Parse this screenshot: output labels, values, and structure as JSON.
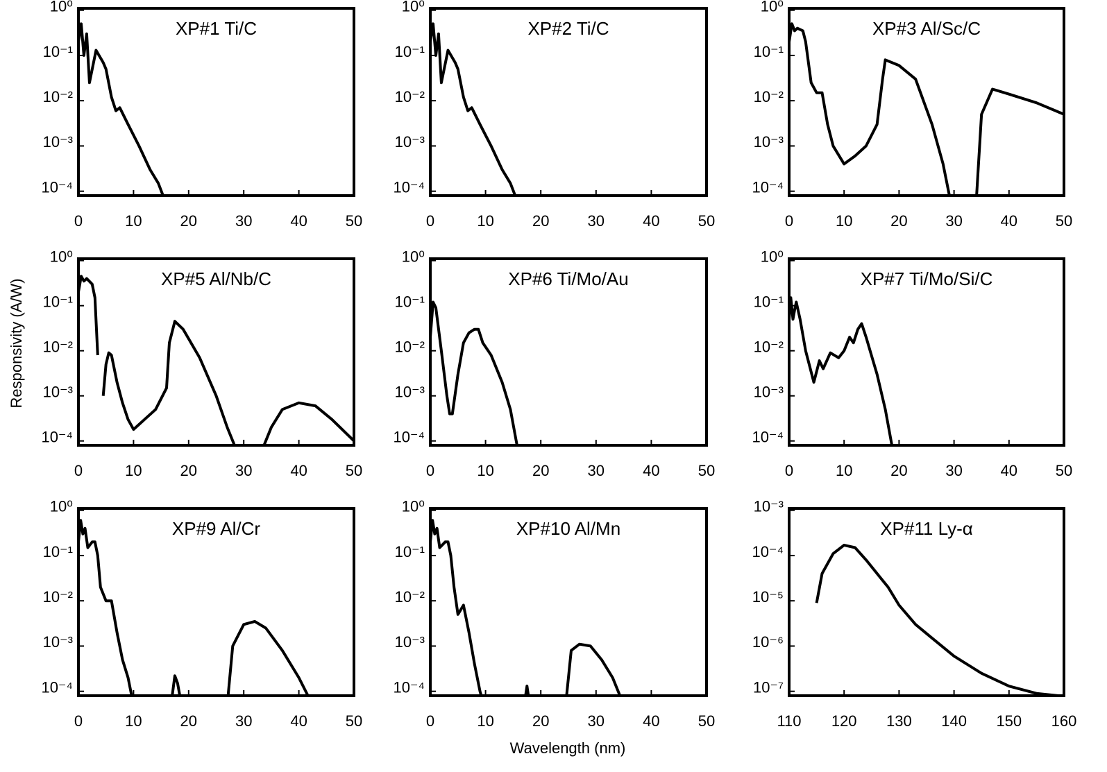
{
  "xlabel": "Wavelength (nm)",
  "ylabel": "Responsivity (A/W)",
  "chart_data": [
    {
      "type": "line",
      "title": "XP#1 Ti/C",
      "yscale": "log",
      "color": "#000000",
      "x": [
        0,
        0.5,
        1,
        1.5,
        2,
        3.2,
        4.5,
        5,
        6,
        6.8,
        7.5,
        9,
        11,
        13,
        14.5,
        16
      ],
      "values": [
        0.2,
        0.5,
        0.1,
        0.3,
        0.025,
        0.13,
        0.07,
        0.05,
        0.012,
        0.006,
        0.007,
        0.003,
        0.001,
        0.0003,
        0.00015,
        5e-05
      ],
      "xlim": [
        0,
        50
      ],
      "xticks": [
        0,
        10,
        20,
        30,
        40,
        50
      ],
      "ylim": [
        8e-05,
        1.1
      ],
      "yticks": [
        {
          "value": 1,
          "label": "10⁰"
        },
        {
          "value": 0.1,
          "label": "10⁻¹"
        },
        {
          "value": 0.01,
          "label": "10⁻²"
        },
        {
          "value": 0.001,
          "label": "10⁻³"
        },
        {
          "value": 0.0001,
          "label": "10⁻⁴"
        }
      ]
    },
    {
      "type": "line",
      "title": "XP#2 Ti/C",
      "yscale": "log",
      "color": "#000000",
      "x": [
        0,
        0.5,
        1,
        1.5,
        2,
        3.2,
        4.5,
        5,
        6,
        6.8,
        7.5,
        9,
        11,
        13,
        14.5,
        16
      ],
      "values": [
        0.2,
        0.5,
        0.1,
        0.3,
        0.025,
        0.13,
        0.07,
        0.05,
        0.012,
        0.006,
        0.007,
        0.003,
        0.001,
        0.0003,
        0.00015,
        5e-05
      ],
      "xlim": [
        0,
        50
      ],
      "xticks": [
        0,
        10,
        20,
        30,
        40,
        50
      ],
      "ylim": [
        8e-05,
        1.1
      ],
      "yticks": [
        {
          "value": 1,
          "label": "10⁰"
        },
        {
          "value": 0.1,
          "label": "10⁻¹"
        },
        {
          "value": 0.01,
          "label": "10⁻²"
        },
        {
          "value": 0.001,
          "label": "10⁻³"
        },
        {
          "value": 0.0001,
          "label": "10⁻⁴"
        }
      ]
    },
    {
      "type": "line",
      "title": "XP#3 Al/Sc/C",
      "yscale": "log",
      "color": "#000000",
      "x": [
        0,
        0.5,
        1,
        1.5,
        2.5,
        3,
        4,
        5,
        6,
        7,
        8,
        10,
        12,
        14,
        16,
        17,
        17.5,
        20,
        23,
        26,
        28,
        29.5,
        32,
        34,
        35,
        37,
        40,
        45,
        50
      ],
      "values": [
        0.2,
        0.5,
        0.35,
        0.4,
        0.35,
        0.2,
        0.025,
        0.015,
        0.015,
        0.003,
        0.001,
        0.0004,
        0.0006,
        0.001,
        0.003,
        0.03,
        0.08,
        0.06,
        0.03,
        0.003,
        0.0004,
        5e-05,
        null,
        5e-05,
        0.005,
        0.018,
        0.014,
        0.009,
        0.005
      ],
      "xlim": [
        0,
        50
      ],
      "xticks": [
        0,
        10,
        20,
        30,
        40,
        50
      ],
      "ylim": [
        8e-05,
        1.1
      ],
      "yticks": [
        {
          "value": 1,
          "label": "10⁰"
        },
        {
          "value": 0.1,
          "label": "10⁻¹"
        },
        {
          "value": 0.01,
          "label": "10⁻²"
        },
        {
          "value": 0.001,
          "label": "10⁻³"
        },
        {
          "value": 0.0001,
          "label": "10⁻⁴"
        }
      ]
    },
    {
      "type": "line",
      "title": "XP#5 Al/Nb/C",
      "yscale": "log",
      "color": "#000000",
      "x": [
        0,
        0.5,
        1,
        1.5,
        2.5,
        3,
        3.5,
        4,
        4.5,
        5,
        5.5,
        6,
        7,
        8,
        9,
        10,
        12,
        14,
        16,
        16.5,
        17.5,
        19,
        22,
        25,
        27,
        29,
        31,
        33,
        35,
        37,
        40,
        43,
        46,
        50
      ],
      "values": [
        0.2,
        0.45,
        0.35,
        0.4,
        0.3,
        0.15,
        0.008,
        null,
        0.001,
        0.005,
        0.009,
        0.008,
        0.002,
        0.0007,
        0.0003,
        0.00018,
        0.0003,
        0.0005,
        0.0015,
        0.015,
        0.045,
        0.03,
        0.007,
        0.001,
        0.0002,
        5e-05,
        null,
        5e-05,
        0.0002,
        0.0005,
        0.0007,
        0.0006,
        0.0003,
        0.0001
      ],
      "xlim": [
        0,
        50
      ],
      "xticks": [
        0,
        10,
        20,
        30,
        40,
        50
      ],
      "ylim": [
        8e-05,
        1.1
      ],
      "yticks": [
        {
          "value": 1,
          "label": "10⁰"
        },
        {
          "value": 0.1,
          "label": "10⁻¹"
        },
        {
          "value": 0.01,
          "label": "10⁻²"
        },
        {
          "value": 0.001,
          "label": "10⁻³"
        },
        {
          "value": 0.0001,
          "label": "10⁻⁴"
        }
      ]
    },
    {
      "type": "line",
      "title": "XP#6 Ti/Mo/Au",
      "yscale": "log",
      "color": "#000000",
      "x": [
        0,
        0.5,
        1,
        2,
        3,
        3.5,
        4,
        5,
        6,
        7,
        8,
        8.7,
        9.5,
        11,
        13,
        14.5,
        16
      ],
      "values": [
        0.02,
        0.12,
        0.09,
        0.01,
        0.001,
        0.0004,
        0.0004,
        0.003,
        0.015,
        0.025,
        0.03,
        0.03,
        0.015,
        0.008,
        0.002,
        0.0005,
        5e-05
      ],
      "xlim": [
        0,
        50
      ],
      "xticks": [
        0,
        10,
        20,
        30,
        40,
        50
      ],
      "ylim": [
        8e-05,
        1.1
      ],
      "yticks": [
        {
          "value": 1,
          "label": "10⁰"
        },
        {
          "value": 0.1,
          "label": "10⁻¹"
        },
        {
          "value": 0.01,
          "label": "10⁻²"
        },
        {
          "value": 0.001,
          "label": "10⁻³"
        },
        {
          "value": 0.0001,
          "label": "10⁻⁴"
        }
      ]
    },
    {
      "type": "line",
      "title": "XP#7 Ti/Mo/Si/C",
      "yscale": "log",
      "color": "#000000",
      "x": [
        0,
        0.3,
        0.7,
        1,
        1.3,
        2,
        3,
        4.5,
        5.5,
        6.2,
        7.5,
        9,
        10,
        11,
        11.7,
        12.5,
        13.2,
        14,
        16,
        17.5,
        19
      ],
      "values": [
        0.05,
        0.15,
        0.05,
        0.08,
        0.12,
        0.05,
        0.01,
        0.002,
        0.006,
        0.004,
        0.009,
        0.007,
        0.01,
        0.02,
        0.015,
        0.03,
        0.04,
        0.02,
        0.003,
        0.0005,
        5e-05
      ],
      "xlim": [
        0,
        50
      ],
      "xticks": [
        0,
        10,
        20,
        30,
        40,
        50
      ],
      "ylim": [
        8e-05,
        1.1
      ],
      "yticks": [
        {
          "value": 1,
          "label": "10⁰"
        },
        {
          "value": 0.1,
          "label": "10⁻¹"
        },
        {
          "value": 0.01,
          "label": "10⁻²"
        },
        {
          "value": 0.001,
          "label": "10⁻³"
        },
        {
          "value": 0.0001,
          "label": "10⁻⁴"
        }
      ]
    },
    {
      "type": "line",
      "title": "XP#9 Al/Cr",
      "yscale": "log",
      "color": "#000000",
      "x": [
        0,
        0.4,
        0.8,
        1.2,
        1.7,
        2.5,
        3,
        3.5,
        4,
        5,
        6,
        7,
        8,
        9,
        10,
        13,
        16.8,
        17.5,
        18,
        18.7,
        23,
        27,
        28,
        30,
        32,
        34,
        37,
        40,
        42.5
      ],
      "values": [
        0.2,
        0.6,
        0.3,
        0.4,
        0.15,
        0.2,
        0.2,
        0.1,
        0.02,
        0.01,
        0.01,
        0.002,
        0.0005,
        0.0002,
        5e-05,
        null,
        5e-05,
        0.00022,
        0.00015,
        5e-05,
        null,
        5e-05,
        0.001,
        0.003,
        0.0035,
        0.0025,
        0.0008,
        0.0002,
        5e-05
      ],
      "xlim": [
        0,
        50
      ],
      "xticks": [
        0,
        10,
        20,
        30,
        40,
        50
      ],
      "ylim": [
        8e-05,
        1.1
      ],
      "yticks": [
        {
          "value": 1,
          "label": "10⁰"
        },
        {
          "value": 0.1,
          "label": "10⁻¹"
        },
        {
          "value": 0.01,
          "label": "10⁻²"
        },
        {
          "value": 0.001,
          "label": "10⁻³"
        },
        {
          "value": 0.0001,
          "label": "10⁻⁴"
        }
      ]
    },
    {
      "type": "line",
      "title": "XP#10 Al/Mn",
      "yscale": "log",
      "color": "#000000",
      "x": [
        0,
        0.4,
        0.8,
        1.2,
        1.7,
        2.7,
        3.2,
        3.7,
        4.3,
        5,
        6,
        7,
        8,
        9,
        9.7,
        13,
        17,
        17.5,
        18,
        21,
        24.5,
        25.5,
        27,
        29,
        31,
        33,
        35
      ],
      "values": [
        0.2,
        0.6,
        0.3,
        0.4,
        0.15,
        0.2,
        0.2,
        0.1,
        0.02,
        0.005,
        0.008,
        0.002,
        0.0004,
        0.0001,
        5e-05,
        null,
        5e-05,
        0.00013,
        5e-05,
        null,
        5e-05,
        0.0008,
        0.0011,
        0.001,
        0.0005,
        0.0002,
        5e-05
      ],
      "xlim": [
        0,
        50
      ],
      "xticks": [
        0,
        10,
        20,
        30,
        40,
        50
      ],
      "ylim": [
        8e-05,
        1.1
      ],
      "yticks": [
        {
          "value": 1,
          "label": "10⁰"
        },
        {
          "value": 0.1,
          "label": "10⁻¹"
        },
        {
          "value": 0.01,
          "label": "10⁻²"
        },
        {
          "value": 0.001,
          "label": "10⁻³"
        },
        {
          "value": 0.0001,
          "label": "10⁻⁴"
        }
      ]
    },
    {
      "type": "line",
      "title": "XP#11 Ly-α",
      "yscale": "log",
      "color": "#000000",
      "x": [
        115,
        116,
        118,
        120,
        122,
        124,
        126,
        128,
        130,
        133,
        136,
        140,
        145,
        150,
        155,
        159
      ],
      "values": [
        9e-06,
        4e-05,
        0.00011,
        0.00017,
        0.00015,
        8e-05,
        4e-05,
        2e-05,
        8e-06,
        3e-06,
        1.5e-06,
        6e-07,
        2.5e-07,
        1.3e-07,
        9e-08,
        8e-08
      ],
      "xlim": [
        110,
        160
      ],
      "xticks": [
        110,
        120,
        130,
        140,
        150,
        160
      ],
      "ylim": [
        8e-08,
        0.0011
      ],
      "yticks": [
        {
          "value": 0.001,
          "label": "10⁻³"
        },
        {
          "value": 0.0001,
          "label": "10⁻⁴"
        },
        {
          "value": 1e-05,
          "label": "10⁻⁵"
        },
        {
          "value": 1e-06,
          "label": "10⁻⁶"
        },
        {
          "value": 1e-07,
          "label": "10⁻⁷"
        }
      ]
    }
  ]
}
